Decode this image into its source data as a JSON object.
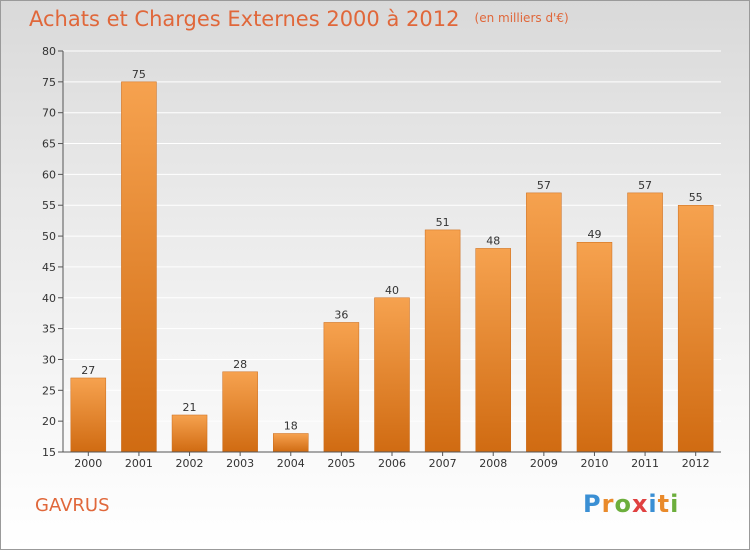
{
  "chart_data": {
    "type": "bar",
    "title": "Achats et Charges Externes 2000 à 2012",
    "subtitle": "(en milliers d'€)",
    "categories": [
      "2000",
      "2001",
      "2002",
      "2003",
      "2004",
      "2005",
      "2006",
      "2007",
      "2008",
      "2009",
      "2010",
      "2011",
      "2012"
    ],
    "values": [
      27,
      75,
      21,
      28,
      18,
      36,
      40,
      51,
      48,
      57,
      49,
      57,
      55
    ],
    "ylim": [
      15,
      80
    ],
    "yticks": [
      15,
      20,
      25,
      30,
      35,
      40,
      45,
      50,
      55,
      60,
      65,
      70,
      75,
      80
    ],
    "grid": true,
    "bar_color_top": "#f6a24f",
    "bar_color_bottom": "#d06b12"
  },
  "footer": {
    "commune": "GAVRUS",
    "brand_letters": [
      {
        "ch": "P",
        "color": "#3a8fd4"
      },
      {
        "ch": "r",
        "color": "#e98a2b"
      },
      {
        "ch": "o",
        "color": "#6cae3c"
      },
      {
        "ch": "x",
        "color": "#e04040"
      },
      {
        "ch": "i",
        "color": "#3a8fd4"
      },
      {
        "ch": "t",
        "color": "#e98a2b"
      },
      {
        "ch": "i",
        "color": "#6cae3c"
      }
    ]
  }
}
